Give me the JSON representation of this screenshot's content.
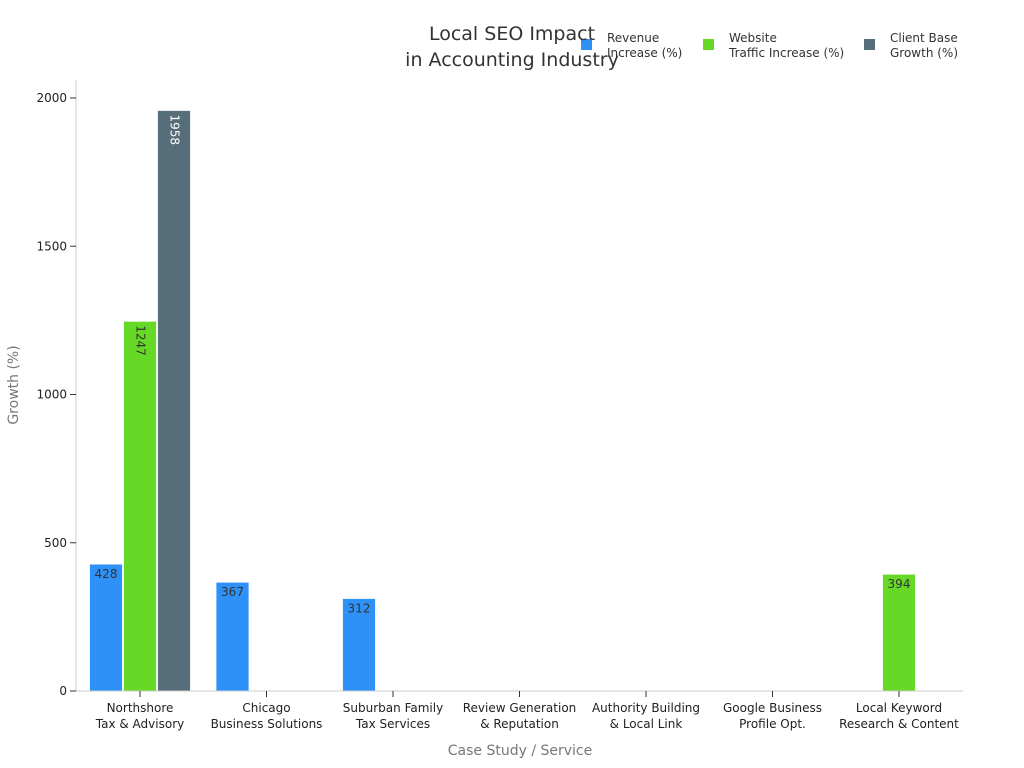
{
  "chart_data": {
    "type": "bar",
    "title_lines": [
      "Local SEO Impact",
      "in Accounting Industry"
    ],
    "xlabel": "Case Study / Service",
    "ylabel": "Growth (%)",
    "ylim": [
      0,
      2050
    ],
    "yticks": [
      0,
      500,
      1000,
      1500,
      2000
    ],
    "grid": false,
    "legend_position": "top-right",
    "categories": [
      [
        "Northshore",
        "Tax & Advisory"
      ],
      [
        "Chicago",
        "Business Solutions"
      ],
      [
        "Suburban Family",
        "Tax Services"
      ],
      [
        "Review Generation",
        "& Reputation"
      ],
      [
        "Authority Building",
        "& Local Link"
      ],
      [
        "Google Business",
        "Profile Opt."
      ],
      [
        "Local Keyword",
        "Research & Content"
      ]
    ],
    "series": [
      {
        "name_lines": [
          "Revenue",
          "Increase (%)"
        ],
        "color": "#2d91f7",
        "label_color": "#333333",
        "values": [
          428,
          367,
          312,
          null,
          null,
          null,
          null
        ]
      },
      {
        "name_lines": [
          "Website",
          "Traffic Increase (%)"
        ],
        "color": "#66d926",
        "label_color": "#333333",
        "values": [
          1247,
          null,
          null,
          null,
          null,
          null,
          394
        ]
      },
      {
        "name_lines": [
          "Client Base",
          "Growth (%)"
        ],
        "color": "#566d7a",
        "label_color": "#ffffff",
        "values": [
          1958,
          null,
          null,
          null,
          null,
          null,
          null
        ]
      }
    ]
  }
}
